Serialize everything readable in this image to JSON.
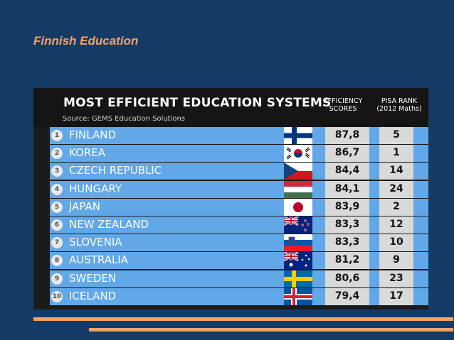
{
  "slide": {
    "title": "Finnish Education"
  },
  "table": {
    "title": "MOST EFFICIENT EDUCATION SYSTEMS",
    "source": "Source: GEMS Education Solutions",
    "col_efficiency": "EFFICIENCY SCORES",
    "col_pisa": "PISA RANK (2012 Maths)",
    "rows": [
      {
        "rank": "1",
        "country": "FINLAND",
        "flag": "finland-flag",
        "efficiency": "87,8",
        "pisa": "5"
      },
      {
        "rank": "2",
        "country": "KOREA",
        "flag": "korea-flag",
        "efficiency": "86,7",
        "pisa": "1"
      },
      {
        "rank": "3",
        "country": "CZECH REPUBLIC",
        "flag": "czech-flag",
        "efficiency": "84,4",
        "pisa": "14"
      },
      {
        "rank": "4",
        "country": "HUNGARY",
        "flag": "hungary-flag",
        "efficiency": "84,1",
        "pisa": "24"
      },
      {
        "rank": "5",
        "country": "JAPAN",
        "flag": "japan-flag",
        "efficiency": "83,9",
        "pisa": "2"
      },
      {
        "rank": "6",
        "country": "NEW ZEALAND",
        "flag": "new-zealand-flag",
        "efficiency": "83,3",
        "pisa": "12"
      },
      {
        "rank": "7",
        "country": "SLOVENIA",
        "flag": "slovenia-flag",
        "efficiency": "83,3",
        "pisa": "10"
      },
      {
        "rank": "8",
        "country": "AUSTRALIA",
        "flag": "australia-flag",
        "efficiency": "81,2",
        "pisa": "9"
      },
      {
        "rank": "9",
        "country": "SWEDEN",
        "flag": "sweden-flag",
        "efficiency": "80,6",
        "pisa": "23"
      },
      {
        "rank": "10",
        "country": "ICELAND",
        "flag": "iceland-flag",
        "efficiency": "79,4",
        "pisa": "17"
      }
    ]
  },
  "colors": {
    "accent": "#f4a460",
    "background": "#163a66",
    "row": "#62a7e8",
    "header": "#151515"
  }
}
